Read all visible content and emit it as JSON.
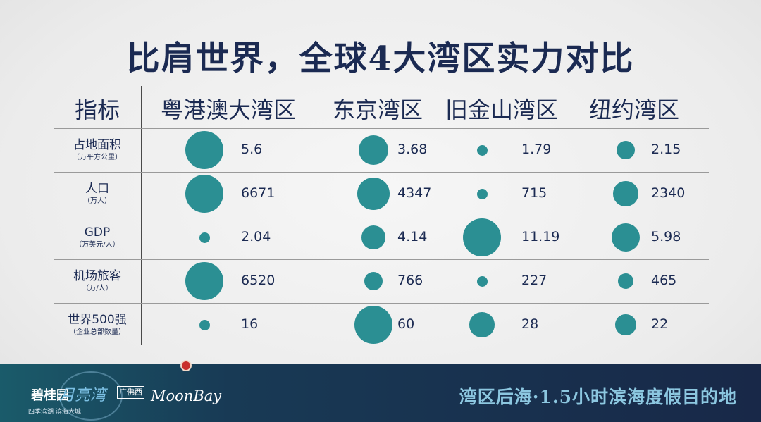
{
  "title": "比肩世界，全球4大湾区实力对比",
  "table": {
    "header_label": "指标",
    "columns": [
      "粤港澳大湾区",
      "东京湾区",
      "旧金山湾区",
      "纽约湾区"
    ],
    "rows": [
      {
        "label": "占地面积",
        "sub": "（万平方公里）",
        "values": [
          "5.6",
          "3.68",
          "1.79",
          "2.15"
        ],
        "sizes": [
          5.6,
          3.68,
          1.79,
          2.15
        ]
      },
      {
        "label": "人口",
        "sub": "（万人）",
        "values": [
          "6671",
          "4347",
          "715",
          "2340"
        ],
        "sizes": [
          6671,
          4347,
          715,
          2340
        ]
      },
      {
        "label": "GDP",
        "sub": "（万美元/人）",
        "values": [
          "2.04",
          "4.14",
          "11.19",
          "5.98"
        ],
        "sizes": [
          2.04,
          4.14,
          11.19,
          5.98
        ]
      },
      {
        "label": "机场旅客",
        "sub": "（万/人）",
        "values": [
          "6520",
          "766",
          "227",
          "465"
        ],
        "sizes": [
          6520,
          766,
          227,
          465
        ]
      },
      {
        "label": "世界500强",
        "sub": "（企业总部数量）",
        "values": [
          "16",
          "60",
          "28",
          "22"
        ],
        "sizes": [
          16,
          60,
          28,
          22
        ]
      }
    ],
    "bubble_color": "#2b8f93"
  },
  "footer": {
    "brand_name": "碧桂园",
    "brand_script": "月亮湾",
    "brand_tag": "广佛西",
    "brand_sub": "四季滨湖 滨海大城",
    "moonbay": "MoonBay",
    "slogan": "湾区后海·1.5小时滨海度假目的地"
  }
}
